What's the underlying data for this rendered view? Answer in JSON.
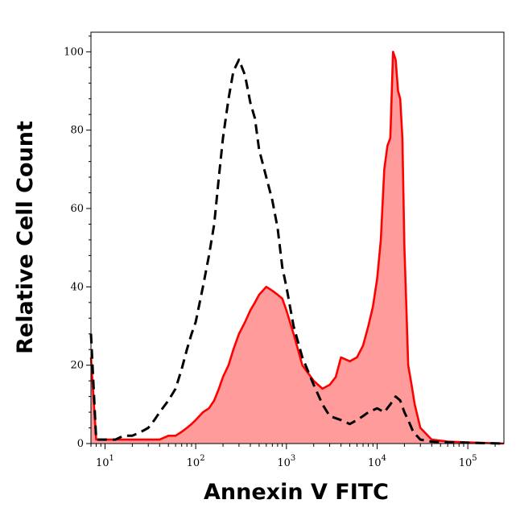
{
  "chart_data": {
    "type": "area",
    "title": "",
    "xlabel": "Annexin V FITC",
    "ylabel": "Relative Cell Count",
    "x_scale": "log",
    "xlim": [
      7,
      250000
    ],
    "ylim": [
      0,
      105
    ],
    "y_ticks": [
      0,
      20,
      40,
      60,
      80,
      100
    ],
    "x_tick_labels": [
      {
        "base": "10",
        "exp": "1",
        "value": 10
      },
      {
        "base": "10",
        "exp": "2",
        "value": 100
      },
      {
        "base": "10",
        "exp": "3",
        "value": 1000
      },
      {
        "base": "10",
        "exp": "4",
        "value": 10000
      },
      {
        "base": "10",
        "exp": "5",
        "value": 100000
      }
    ],
    "grid": false,
    "series": [
      {
        "style": "dashed",
        "color": "#000000",
        "x": [
          7,
          8,
          10,
          13,
          16,
          20,
          25,
          30,
          35,
          40,
          50,
          60,
          70,
          80,
          90,
          100,
          120,
          140,
          160,
          180,
          200,
          230,
          260,
          300,
          350,
          400,
          450,
          500,
          600,
          700,
          800,
          900,
          1000,
          1200,
          1500,
          2000,
          2500,
          3000,
          4000,
          5000,
          6000,
          7000,
          8000,
          10000,
          12000,
          14000,
          16000,
          18000,
          20000,
          22000,
          25000,
          30000,
          40000,
          60000,
          100000,
          250000
        ],
        "y": [
          28,
          1,
          1,
          1,
          2,
          2,
          3,
          4,
          6,
          8,
          11,
          14,
          19,
          24,
          28,
          31,
          40,
          48,
          56,
          68,
          78,
          88,
          95,
          98,
          94,
          87,
          83,
          75,
          68,
          62,
          55,
          45,
          40,
          30,
          22,
          15,
          10,
          7,
          6,
          5,
          6,
          7,
          8,
          9,
          8,
          10,
          12,
          11,
          8,
          6,
          3,
          1,
          0.5,
          0.3,
          0.2,
          0
        ]
      },
      {
        "style": "filled",
        "color": "#ff0000",
        "fill": "#ff9b9b",
        "x": [
          7,
          8,
          10,
          13,
          16,
          20,
          25,
          30,
          35,
          40,
          50,
          60,
          70,
          80,
          90,
          100,
          120,
          140,
          160,
          180,
          200,
          230,
          260,
          300,
          350,
          400,
          450,
          500,
          600,
          700,
          800,
          900,
          1000,
          1200,
          1500,
          2000,
          2500,
          3000,
          3500,
          4000,
          5000,
          6000,
          7000,
          8000,
          9000,
          10000,
          11000,
          12000,
          13000,
          14000,
          15000,
          16000,
          17000,
          18000,
          19000,
          20000,
          21000,
          22000,
          24000,
          26000,
          30000,
          40000,
          60000,
          100000,
          250000
        ],
        "y": [
          22,
          1,
          1,
          1,
          1,
          1,
          1,
          1,
          1,
          1,
          2,
          2,
          3,
          4,
          5,
          6,
          8,
          9,
          11,
          14,
          17,
          20,
          24,
          28,
          31,
          34,
          36,
          38,
          40,
          39,
          38,
          37,
          34,
          28,
          20,
          16,
          14,
          15,
          17,
          22,
          21,
          22,
          25,
          30,
          35,
          42,
          52,
          70,
          76,
          78,
          100,
          98,
          90,
          88,
          78,
          50,
          35,
          20,
          15,
          10,
          4,
          1,
          0.5,
          0.3,
          0
        ]
      }
    ]
  }
}
